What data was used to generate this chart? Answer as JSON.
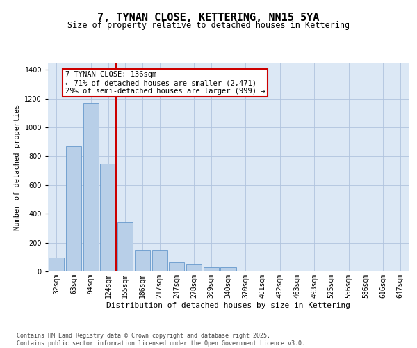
{
  "title": "7, TYNAN CLOSE, KETTERING, NN15 5YA",
  "subtitle": "Size of property relative to detached houses in Kettering",
  "xlabel": "Distribution of detached houses by size in Kettering",
  "ylabel": "Number of detached properties",
  "categories": [
    "32sqm",
    "63sqm",
    "94sqm",
    "124sqm",
    "155sqm",
    "186sqm",
    "217sqm",
    "247sqm",
    "278sqm",
    "309sqm",
    "340sqm",
    "370sqm",
    "401sqm",
    "432sqm",
    "463sqm",
    "493sqm",
    "525sqm",
    "556sqm",
    "586sqm",
    "616sqm",
    "647sqm"
  ],
  "values": [
    95,
    870,
    1170,
    750,
    345,
    150,
    150,
    65,
    50,
    30,
    30,
    0,
    0,
    0,
    0,
    0,
    0,
    0,
    0,
    0,
    0
  ],
  "bar_color": "#b8cfe8",
  "bar_edge_color": "#6699cc",
  "vline_color": "#cc0000",
  "annotation_text": "7 TYNAN CLOSE: 136sqm\n← 71% of detached houses are smaller (2,471)\n29% of semi-detached houses are larger (999) →",
  "annotation_box_facecolor": "#ffffff",
  "annotation_box_edgecolor": "#cc0000",
  "ylim": [
    0,
    1450
  ],
  "yticks": [
    0,
    200,
    400,
    600,
    800,
    1000,
    1200,
    1400
  ],
  "plot_bg_color": "#dce8f5",
  "grid_color": "#b0c4de",
  "footer": "Contains HM Land Registry data © Crown copyright and database right 2025.\nContains public sector information licensed under the Open Government Licence v3.0.",
  "title_fontsize": 11,
  "subtitle_fontsize": 8.5,
  "xlabel_fontsize": 8,
  "ylabel_fontsize": 7.5,
  "tick_fontsize": 7,
  "annotation_fontsize": 7.5,
  "footer_fontsize": 6
}
